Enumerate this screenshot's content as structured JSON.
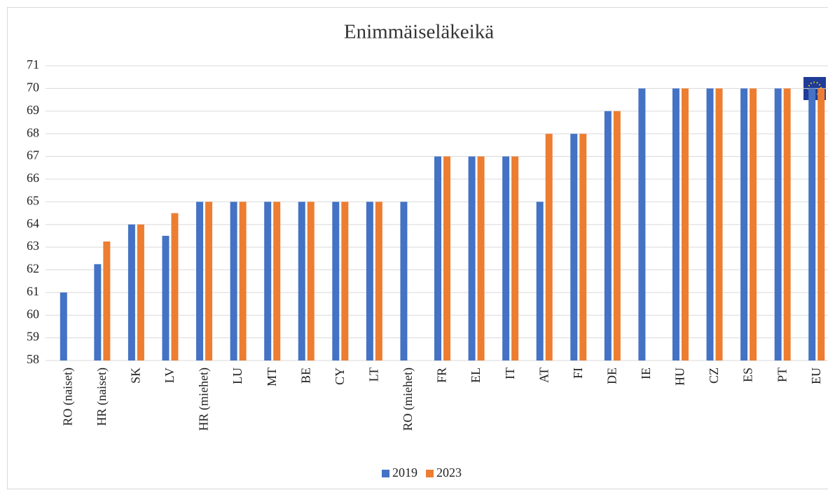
{
  "chart_data": {
    "type": "bar",
    "title": "Enimmäiseläkeikä",
    "categories": [
      "RO (naiset)",
      "HR (naiset)",
      "SK",
      "LV",
      "HR (miehet)",
      "LU",
      "MT",
      "BE",
      "CY",
      "LT",
      "RO (miehet)",
      "FR",
      "EL",
      "IT",
      "AT",
      "FI",
      "DE",
      "IE",
      "HU",
      "CZ",
      "ES",
      "PT",
      "EU"
    ],
    "series": [
      {
        "name": "2019",
        "color": "#4472c4",
        "values": [
          61,
          62.25,
          64,
          63.5,
          65,
          65,
          65,
          65,
          65,
          65,
          65,
          67,
          67,
          67,
          65,
          68,
          69,
          70,
          70,
          70,
          70,
          70,
          70
        ]
      },
      {
        "name": "2023",
        "color": "#ed7d31",
        "values": [
          null,
          63.25,
          64,
          64.5,
          65,
          65,
          65,
          65,
          65,
          65,
          null,
          67,
          67,
          67,
          68,
          68,
          69,
          null,
          70,
          70,
          70,
          70,
          70
        ]
      }
    ],
    "ylim": [
      58,
      71
    ],
    "yticks": [
      58,
      59,
      60,
      61,
      62,
      63,
      64,
      65,
      66,
      67,
      68,
      69,
      70,
      71
    ],
    "grid": true,
    "legend": "bottom"
  }
}
